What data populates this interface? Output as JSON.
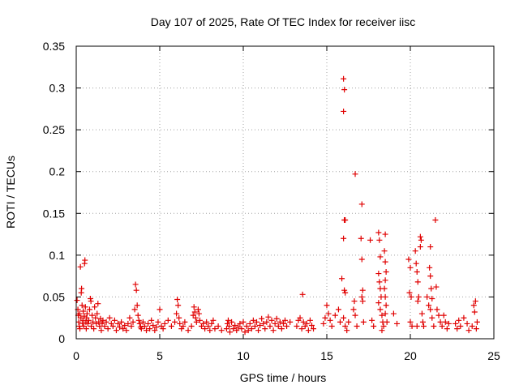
{
  "chart_data": {
    "type": "scatter",
    "title": "Day 107 of 2025, Rate Of TEC Index for receiver iisc",
    "xlabel": "GPS time / hours",
    "ylabel": "ROTI / TECUs",
    "xlim": [
      0,
      25
    ],
    "ylim": [
      0,
      0.35
    ],
    "xticks": [
      0,
      5,
      10,
      15,
      20,
      25
    ],
    "yticks": [
      0,
      0.05,
      0.1,
      0.15,
      0.2,
      0.25,
      0.3,
      0.35
    ],
    "xtick_labels": [
      "0",
      "5",
      "10",
      "15",
      "20",
      "25"
    ],
    "ytick_labels": [
      "0",
      "0.05",
      "0.1",
      "0.15",
      "0.2",
      "0.25",
      "0.3",
      "0.35"
    ],
    "grid": true,
    "marker": "+",
    "color": "#e00000",
    "series": [
      {
        "name": "ROTI",
        "points": [
          [
            0.05,
            0.046
          ],
          [
            0.1,
            0.035
          ],
          [
            0.12,
            0.028
          ],
          [
            0.15,
            0.02
          ],
          [
            0.18,
            0.015
          ],
          [
            0.2,
            0.03
          ],
          [
            0.22,
            0.012
          ],
          [
            0.25,
            0.086
          ],
          [
            0.28,
            0.025
          ],
          [
            0.3,
            0.055
          ],
          [
            0.32,
            0.06
          ],
          [
            0.35,
            0.04
          ],
          [
            0.38,
            0.018
          ],
          [
            0.4,
            0.022
          ],
          [
            0.42,
            0.033
          ],
          [
            0.45,
            0.015
          ],
          [
            0.48,
            0.027
          ],
          [
            0.5,
            0.09
          ],
          [
            0.52,
            0.094
          ],
          [
            0.55,
            0.038
          ],
          [
            0.58,
            0.02
          ],
          [
            0.6,
            0.012
          ],
          [
            0.62,
            0.025
          ],
          [
            0.65,
            0.03
          ],
          [
            0.7,
            0.018
          ],
          [
            0.75,
            0.022
          ],
          [
            0.8,
            0.035
          ],
          [
            0.85,
            0.048
          ],
          [
            0.88,
            0.045
          ],
          [
            0.9,
            0.015
          ],
          [
            0.95,
            0.028
          ],
          [
            1.0,
            0.02
          ],
          [
            1.05,
            0.012
          ],
          [
            1.1,
            0.038
          ],
          [
            1.15,
            0.025
          ],
          [
            1.2,
            0.018
          ],
          [
            1.25,
            0.03
          ],
          [
            1.3,
            0.042
          ],
          [
            1.35,
            0.02
          ],
          [
            1.4,
            0.015
          ],
          [
            1.45,
            0.024
          ],
          [
            1.5,
            0.01
          ],
          [
            1.55,
            0.018
          ],
          [
            1.6,
            0.022
          ],
          [
            1.7,
            0.015
          ],
          [
            1.8,
            0.02
          ],
          [
            1.9,
            0.012
          ],
          [
            2.0,
            0.025
          ],
          [
            2.1,
            0.018
          ],
          [
            2.2,
            0.015
          ],
          [
            2.3,
            0.022
          ],
          [
            2.4,
            0.01
          ],
          [
            2.5,
            0.018
          ],
          [
            2.6,
            0.014
          ],
          [
            2.7,
            0.02
          ],
          [
            2.8,
            0.012
          ],
          [
            2.9,
            0.016
          ],
          [
            3.0,
            0.01
          ],
          [
            3.1,
            0.018
          ],
          [
            3.2,
            0.025
          ],
          [
            3.3,
            0.015
          ],
          [
            3.4,
            0.02
          ],
          [
            3.5,
            0.035
          ],
          [
            3.55,
            0.065
          ],
          [
            3.6,
            0.058
          ],
          [
            3.65,
            0.04
          ],
          [
            3.7,
            0.028
          ],
          [
            3.75,
            0.022
          ],
          [
            3.8,
            0.018
          ],
          [
            3.85,
            0.014
          ],
          [
            3.9,
            0.012
          ],
          [
            4.0,
            0.02
          ],
          [
            4.1,
            0.015
          ],
          [
            4.2,
            0.01
          ],
          [
            4.3,
            0.018
          ],
          [
            4.4,
            0.012
          ],
          [
            4.5,
            0.022
          ],
          [
            4.6,
            0.016
          ],
          [
            4.7,
            0.01
          ],
          [
            4.8,
            0.014
          ],
          [
            4.9,
            0.02
          ],
          [
            5.0,
            0.035
          ],
          [
            5.1,
            0.015
          ],
          [
            5.2,
            0.012
          ],
          [
            5.3,
            0.018
          ],
          [
            5.5,
            0.022
          ],
          [
            5.7,
            0.015
          ],
          [
            5.9,
            0.02
          ],
          [
            6.0,
            0.03
          ],
          [
            6.05,
            0.047
          ],
          [
            6.1,
            0.04
          ],
          [
            6.15,
            0.025
          ],
          [
            6.2,
            0.018
          ],
          [
            6.3,
            0.012
          ],
          [
            6.4,
            0.015
          ],
          [
            6.5,
            0.02
          ],
          [
            6.7,
            0.01
          ],
          [
            6.9,
            0.015
          ],
          [
            7.0,
            0.028
          ],
          [
            7.05,
            0.038
          ],
          [
            7.1,
            0.032
          ],
          [
            7.15,
            0.025
          ],
          [
            7.2,
            0.02
          ],
          [
            7.3,
            0.035
          ],
          [
            7.35,
            0.03
          ],
          [
            7.4,
            0.022
          ],
          [
            7.5,
            0.015
          ],
          [
            7.6,
            0.018
          ],
          [
            7.7,
            0.012
          ],
          [
            7.8,
            0.02
          ],
          [
            7.9,
            0.015
          ],
          [
            8.0,
            0.01
          ],
          [
            8.1,
            0.018
          ],
          [
            8.2,
            0.022
          ],
          [
            8.3,
            0.012
          ],
          [
            8.5,
            0.015
          ],
          [
            8.7,
            0.01
          ],
          [
            9.0,
            0.012
          ],
          [
            9.05,
            0.018
          ],
          [
            9.1,
            0.022
          ],
          [
            9.15,
            0.015
          ],
          [
            9.2,
            0.008
          ],
          [
            9.3,
            0.02
          ],
          [
            9.4,
            0.012
          ],
          [
            9.5,
            0.016
          ],
          [
            9.6,
            0.01
          ],
          [
            9.7,
            0.014
          ],
          [
            9.8,
            0.018
          ],
          [
            9.9,
            0.012
          ],
          [
            10.0,
            0.02
          ],
          [
            10.1,
            0.008
          ],
          [
            10.2,
            0.015
          ],
          [
            10.3,
            0.01
          ],
          [
            10.4,
            0.018
          ],
          [
            10.5,
            0.012
          ],
          [
            10.6,
            0.022
          ],
          [
            10.7,
            0.015
          ],
          [
            10.8,
            0.02
          ],
          [
            10.9,
            0.01
          ],
          [
            11.0,
            0.016
          ],
          [
            11.1,
            0.024
          ],
          [
            11.2,
            0.018
          ],
          [
            11.3,
            0.012
          ],
          [
            11.4,
            0.02
          ],
          [
            11.5,
            0.026
          ],
          [
            11.6,
            0.015
          ],
          [
            11.7,
            0.022
          ],
          [
            11.8,
            0.01
          ],
          [
            11.9,
            0.018
          ],
          [
            12.0,
            0.024
          ],
          [
            12.1,
            0.015
          ],
          [
            12.2,
            0.02
          ],
          [
            12.3,
            0.012
          ],
          [
            12.4,
            0.018
          ],
          [
            12.5,
            0.022
          ],
          [
            12.6,
            0.015
          ],
          [
            12.8,
            0.02
          ],
          [
            13.2,
            0.015
          ],
          [
            13.3,
            0.022
          ],
          [
            13.4,
            0.025
          ],
          [
            13.5,
            0.012
          ],
          [
            13.55,
            0.053
          ],
          [
            13.6,
            0.02
          ],
          [
            13.7,
            0.015
          ],
          [
            13.8,
            0.018
          ],
          [
            13.9,
            0.01
          ],
          [
            14.0,
            0.022
          ],
          [
            14.1,
            0.016
          ],
          [
            14.2,
            0.012
          ],
          [
            14.8,
            0.018
          ],
          [
            14.9,
            0.025
          ],
          [
            15.0,
            0.04
          ],
          [
            15.1,
            0.03
          ],
          [
            15.2,
            0.022
          ],
          [
            15.3,
            0.015
          ],
          [
            15.5,
            0.028
          ],
          [
            15.7,
            0.035
          ],
          [
            15.8,
            0.02
          ],
          [
            15.9,
            0.072
          ],
          [
            16.0,
            0.311
          ],
          [
            16.05,
            0.298
          ],
          [
            16.0,
            0.272
          ],
          [
            16.05,
            0.142
          ],
          [
            16.1,
            0.142
          ],
          [
            16.0,
            0.12
          ],
          [
            16.05,
            0.058
          ],
          [
            16.1,
            0.055
          ],
          [
            16.0,
            0.025
          ],
          [
            16.1,
            0.015
          ],
          [
            16.2,
            0.01
          ],
          [
            16.3,
            0.02
          ],
          [
            16.7,
            0.197
          ],
          [
            16.6,
            0.035
          ],
          [
            16.65,
            0.045
          ],
          [
            16.7,
            0.028
          ],
          [
            16.8,
            0.015
          ],
          [
            17.1,
            0.161
          ],
          [
            17.05,
            0.12
          ],
          [
            17.1,
            0.095
          ],
          [
            17.15,
            0.058
          ],
          [
            17.1,
            0.05
          ],
          [
            17.15,
            0.045
          ],
          [
            17.2,
            0.02
          ],
          [
            17.6,
            0.118
          ],
          [
            17.7,
            0.022
          ],
          [
            17.8,
            0.015
          ],
          [
            18.1,
            0.127
          ],
          [
            18.15,
            0.118
          ],
          [
            18.2,
            0.098
          ],
          [
            18.1,
            0.078
          ],
          [
            18.15,
            0.068
          ],
          [
            18.2,
            0.06
          ],
          [
            18.25,
            0.05
          ],
          [
            18.1,
            0.043
          ],
          [
            18.2,
            0.035
          ],
          [
            18.3,
            0.028
          ],
          [
            18.35,
            0.02
          ],
          [
            18.4,
            0.015
          ],
          [
            18.3,
            0.01
          ],
          [
            18.5,
            0.125
          ],
          [
            18.45,
            0.105
          ],
          [
            18.5,
            0.092
          ],
          [
            18.55,
            0.08
          ],
          [
            18.5,
            0.07
          ],
          [
            18.45,
            0.06
          ],
          [
            18.5,
            0.05
          ],
          [
            18.55,
            0.04
          ],
          [
            18.5,
            0.03
          ],
          [
            18.6,
            0.02
          ],
          [
            19.0,
            0.03
          ],
          [
            19.2,
            0.018
          ],
          [
            19.9,
            0.095
          ],
          [
            20.0,
            0.085
          ],
          [
            19.95,
            0.055
          ],
          [
            20.05,
            0.05
          ],
          [
            20.0,
            0.02
          ],
          [
            20.1,
            0.015
          ],
          [
            20.3,
            0.105
          ],
          [
            20.35,
            0.09
          ],
          [
            20.4,
            0.08
          ],
          [
            20.45,
            0.068
          ],
          [
            20.5,
            0.05
          ],
          [
            20.45,
            0.045
          ],
          [
            20.4,
            0.015
          ],
          [
            20.6,
            0.122
          ],
          [
            20.65,
            0.118
          ],
          [
            20.6,
            0.11
          ],
          [
            20.7,
            0.03
          ],
          [
            20.75,
            0.02
          ],
          [
            20.8,
            0.015
          ],
          [
            21.0,
            0.05
          ],
          [
            21.1,
            0.04
          ],
          [
            21.2,
            0.11
          ],
          [
            21.15,
            0.085
          ],
          [
            21.2,
            0.075
          ],
          [
            21.25,
            0.06
          ],
          [
            21.3,
            0.048
          ],
          [
            21.2,
            0.035
          ],
          [
            21.3,
            0.025
          ],
          [
            21.4,
            0.015
          ],
          [
            21.5,
            0.142
          ],
          [
            21.55,
            0.062
          ],
          [
            21.6,
            0.035
          ],
          [
            21.7,
            0.028
          ],
          [
            21.8,
            0.02
          ],
          [
            21.9,
            0.015
          ],
          [
            22.0,
            0.028
          ],
          [
            22.1,
            0.02
          ],
          [
            22.2,
            0.012
          ],
          [
            22.3,
            0.018
          ],
          [
            22.7,
            0.018
          ],
          [
            22.8,
            0.012
          ],
          [
            22.9,
            0.022
          ],
          [
            23.0,
            0.015
          ],
          [
            23.2,
            0.025
          ],
          [
            23.4,
            0.018
          ],
          [
            23.5,
            0.01
          ],
          [
            23.7,
            0.015
          ],
          [
            23.8,
            0.04
          ],
          [
            23.85,
            0.032
          ],
          [
            23.9,
            0.045
          ],
          [
            23.95,
            0.012
          ],
          [
            24.0,
            0.02
          ]
        ]
      }
    ]
  }
}
